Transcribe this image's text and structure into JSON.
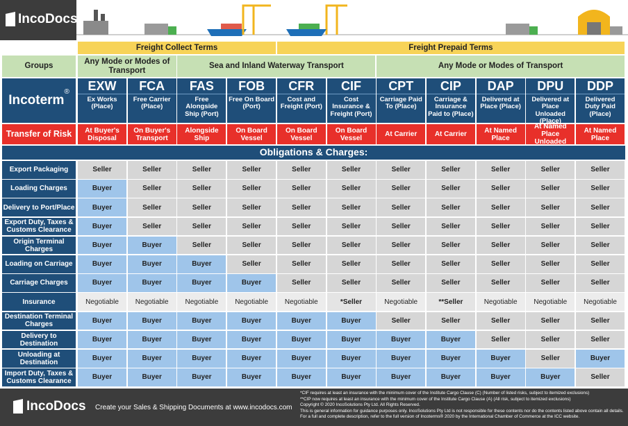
{
  "header": {
    "logo": "IncoDocs"
  },
  "terms": [
    "Freight Collect Terms",
    "Freight Prepaid Terms"
  ],
  "groups": {
    "label": "Groups",
    "items": [
      "Any Mode or Modes of Transport",
      "Sea and Inland Waterway Transport",
      "Any Mode or Modes of Transport"
    ]
  },
  "incoterm_label": "Incoterm",
  "incoterm_mark": "®",
  "incoterms": [
    {
      "code": "EXW",
      "name": "Ex Works (Place)"
    },
    {
      "code": "FCA",
      "name": "Free Carrier (Place)"
    },
    {
      "code": "FAS",
      "name": "Free Alongside Ship (Port)"
    },
    {
      "code": "FOB",
      "name": "Free On Board (Port)"
    },
    {
      "code": "CFR",
      "name": "Cost and Freight (Port)"
    },
    {
      "code": "CIF",
      "name": "Cost Insurance & Freight (Port)"
    },
    {
      "code": "CPT",
      "name": "Carriage Paid To (Place)"
    },
    {
      "code": "CIP",
      "name": "Carriage & Insurance Paid to (Place)"
    },
    {
      "code": "DAP",
      "name": "Delivered at Place (Place)"
    },
    {
      "code": "DPU",
      "name": "Delivered at Place Unloaded (Place)"
    },
    {
      "code": "DDP",
      "name": "Delivered Duty Paid (Place)"
    }
  ],
  "risk": {
    "label": "Transfer of Risk",
    "values": [
      "At Buyer's Disposal",
      "On Buyer's Transport",
      "Alongside Ship",
      "On Board Vessel",
      "On Board Vessel",
      "On Board Vessel",
      "At Carrier",
      "At Carrier",
      "At Named Place",
      "At Named Place Unloaded",
      "At Named Place"
    ]
  },
  "obligations_title": "Obligations & Charges:",
  "cell_colors": {
    "Buyer": "#9fc5ea",
    "Seller": "#d6d6d6",
    "Negotiable": "#ececec",
    "*Seller": "#e4e4e4",
    "**Seller": "#e4e4e4"
  },
  "rows": [
    {
      "label": "Export Packaging",
      "cells": [
        "Seller",
        "Seller",
        "Seller",
        "Seller",
        "Seller",
        "Seller",
        "Seller",
        "Seller",
        "Seller",
        "Seller",
        "Seller"
      ]
    },
    {
      "label": "Loading Charges",
      "cells": [
        "Buyer",
        "Seller",
        "Seller",
        "Seller",
        "Seller",
        "Seller",
        "Seller",
        "Seller",
        "Seller",
        "Seller",
        "Seller"
      ]
    },
    {
      "label": "Delivery to Port/Place",
      "cells": [
        "Buyer",
        "Seller",
        "Seller",
        "Seller",
        "Seller",
        "Seller",
        "Seller",
        "Seller",
        "Seller",
        "Seller",
        "Seller"
      ]
    },
    {
      "label": "Export Duty, Taxes & Customs Clearance",
      "cells": [
        "Buyer",
        "Seller",
        "Seller",
        "Seller",
        "Seller",
        "Seller",
        "Seller",
        "Seller",
        "Seller",
        "Seller",
        "Seller"
      ]
    },
    {
      "label": "Origin Terminal Charges",
      "cells": [
        "Buyer",
        "Buyer",
        "Seller",
        "Seller",
        "Seller",
        "Seller",
        "Seller",
        "Seller",
        "Seller",
        "Seller",
        "Seller"
      ]
    },
    {
      "label": "Loading on Carriage",
      "cells": [
        "Buyer",
        "Buyer",
        "Buyer",
        "Seller",
        "Seller",
        "Seller",
        "Seller",
        "Seller",
        "Seller",
        "Seller",
        "Seller"
      ]
    },
    {
      "label": "Carriage Charges",
      "cells": [
        "Buyer",
        "Buyer",
        "Buyer",
        "Buyer",
        "Seller",
        "Seller",
        "Seller",
        "Seller",
        "Seller",
        "Seller",
        "Seller"
      ]
    },
    {
      "label": "Insurance",
      "cells": [
        "Negotiable",
        "Negotiable",
        "Negotiable",
        "Negotiable",
        "Negotiable",
        "*Seller",
        "Negotiable",
        "**Seller",
        "Negotiable",
        "Negotiable",
        "Negotiable"
      ]
    },
    {
      "label": "Destination Terminal Charges",
      "cells": [
        "Buyer",
        "Buyer",
        "Buyer",
        "Buyer",
        "Buyer",
        "Buyer",
        "Seller",
        "Seller",
        "Seller",
        "Seller",
        "Seller"
      ]
    },
    {
      "label": "Delivery to Destination",
      "cells": [
        "Buyer",
        "Buyer",
        "Buyer",
        "Buyer",
        "Buyer",
        "Buyer",
        "Buyer",
        "Buyer",
        "Seller",
        "Seller",
        "Seller"
      ]
    },
    {
      "label": "Unloading at Destination",
      "cells": [
        "Buyer",
        "Buyer",
        "Buyer",
        "Buyer",
        "Buyer",
        "Buyer",
        "Buyer",
        "Buyer",
        "Buyer",
        "Seller",
        "Buyer"
      ]
    },
    {
      "label": "Import Duty, Taxes & Customs Clearance",
      "cells": [
        "Buyer",
        "Buyer",
        "Buyer",
        "Buyer",
        "Buyer",
        "Buyer",
        "Buyer",
        "Buyer",
        "Buyer",
        "Buyer",
        "Seller"
      ]
    }
  ],
  "footer": {
    "logo": "IncoDocs",
    "tagline": "Create your Sales & Shipping Documents at www.incodocs.com",
    "notes": [
      "*CIF requires at least an insurance with the minimum cover of the Institute Cargo Clause (C) (Number of listed risks, subject to itemized exclusions)",
      "**CIP now requires at least an insurance with the minimum cover of the Institute Cargo Clause (A) (All risk, subject to itemized exclusions)",
      "Copyright © 2020 IncoSolutions Pty Ltd. All Rights Reserved.",
      "This is general information for guidance purposes only. IncoSolutions Pty Ltd is not responsible for these contents nor do the contents listed above contain all details. For a full and complete description, refer to the full version of Incoterms® 2020 by the International Chamber of Commerce at the ICC website."
    ]
  }
}
